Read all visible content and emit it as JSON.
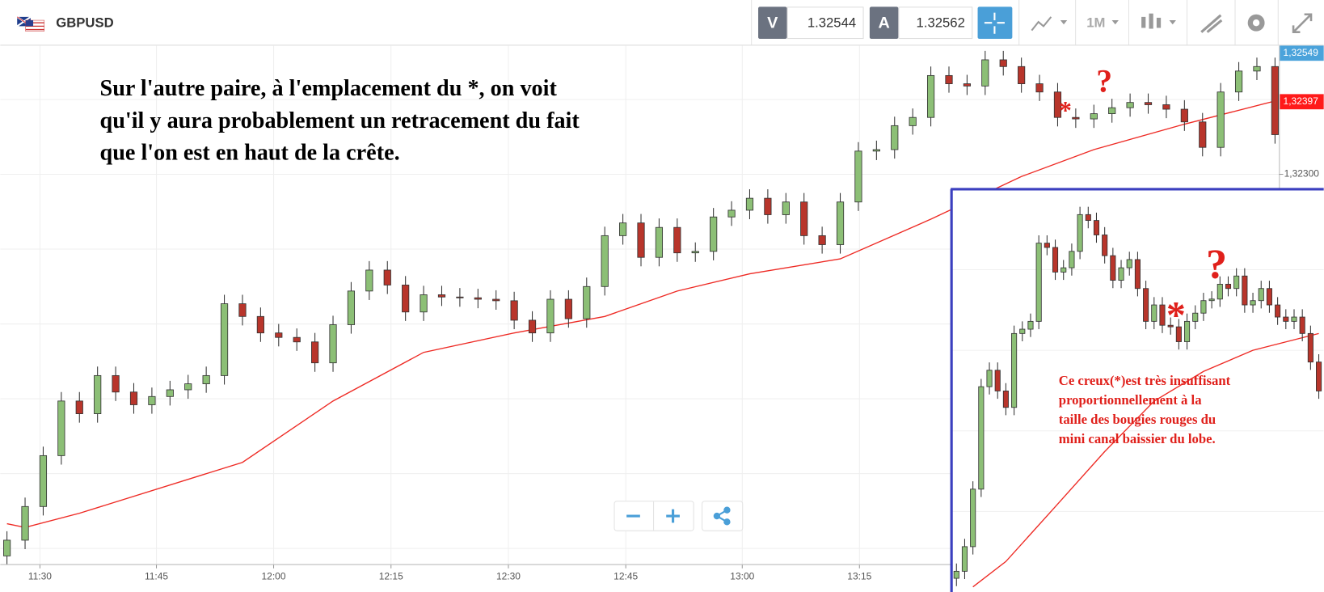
{
  "toolbar": {
    "symbol": "GBPUSD",
    "bid_label": "V",
    "bid": 1.32544,
    "ask_label": "A",
    "ask": 1.32562,
    "timeframe": "1M"
  },
  "annotation": {
    "lines": [
      "Sur l'autre paire, à  l'emplacement  du *, on voit",
      "qu'il y aura probablement un retracement du fait",
      "que l'on est en haut de la crête."
    ],
    "star": "*",
    "question": "?"
  },
  "chart_data": {
    "type": "candlestick",
    "xlim": [
      -0.37,
      70.22
    ],
    "ylim": [
      1.31779,
      1.32472
    ],
    "xticks": [
      {
        "value": 1.82,
        "label": "11:30"
      },
      {
        "value": 8.25,
        "label": "11:45"
      },
      {
        "value": 14.72,
        "label": "12:00"
      },
      {
        "value": 21.2,
        "label": "12:15"
      },
      {
        "value": 27.68,
        "label": "12:30"
      },
      {
        "value": 34.16,
        "label": "12:45"
      },
      {
        "value": 40.59,
        "label": "13:00"
      },
      {
        "value": 47.06,
        "label": "13:15"
      }
    ],
    "yticks": [
      {
        "value": 1.323,
        "label": "1,32300"
      }
    ],
    "ygrid": [
      1.318,
      1.319,
      1.32,
      1.321,
      1.322,
      1.323,
      1.324
    ],
    "grid": true,
    "up_color": "#8cbf76",
    "down_color": "#b8352b",
    "open": [
      1.3179,
      1.31811,
      1.31856,
      1.31924,
      1.31997,
      1.3198,
      1.32031,
      1.32009,
      1.31992,
      1.32003,
      1.32012,
      1.3202,
      1.32031,
      1.32127,
      1.3211,
      1.32088,
      1.32082,
      1.32076,
      1.32048,
      1.32099,
      1.32144,
      1.32172,
      1.32152,
      1.32116,
      1.32139,
      1.32136,
      1.32135,
      1.32133,
      1.32131,
      1.32105,
      1.32088,
      1.32133,
      1.32107,
      1.3215,
      1.32218,
      1.32235,
      1.32189,
      1.32229,
      1.32195,
      1.32197,
      1.32243,
      1.32252,
      1.32268,
      1.32246,
      1.32263,
      1.32218,
      1.32206,
      1.32263,
      1.32331,
      1.32333,
      1.32365,
      1.32376,
      1.32432,
      1.32421,
      1.32418,
      1.32453,
      1.32444,
      1.32421,
      1.3241,
      1.32376,
      1.32374,
      1.32381,
      1.32389,
      1.32396,
      1.32393,
      1.32387,
      1.3237,
      1.32336,
      1.3241,
      1.32438,
      1.32444
    ],
    "high": [
      1.31823,
      1.31868,
      1.31936,
      1.32009,
      1.32009,
      1.32043,
      1.32043,
      1.32021,
      1.32015,
      1.32024,
      1.32032,
      1.32043,
      1.32139,
      1.32139,
      1.32122,
      1.321,
      1.32094,
      1.32088,
      1.32111,
      1.32156,
      1.32184,
      1.32184,
      1.32164,
      1.32151,
      1.32151,
      1.32148,
      1.32147,
      1.32145,
      1.32143,
      1.32117,
      1.32145,
      1.32145,
      1.32162,
      1.3223,
      1.32247,
      1.32247,
      1.32241,
      1.32241,
      1.32209,
      1.32255,
      1.32264,
      1.3228,
      1.3228,
      1.32275,
      1.32275,
      1.3223,
      1.32275,
      1.32343,
      1.32345,
      1.32377,
      1.32388,
      1.32444,
      1.32444,
      1.32433,
      1.32465,
      1.32465,
      1.32456,
      1.32433,
      1.32422,
      1.32388,
      1.32393,
      1.32401,
      1.32408,
      1.32408,
      1.32405,
      1.32399,
      1.32382,
      1.32422,
      1.3245,
      1.32456,
      1.32456
    ],
    "low": [
      1.31778,
      1.31799,
      1.31844,
      1.31912,
      1.31968,
      1.31968,
      1.31997,
      1.3198,
      1.3198,
      1.31991,
      1.32,
      1.32008,
      1.32019,
      1.32098,
      1.32076,
      1.3207,
      1.32064,
      1.32036,
      1.32036,
      1.32087,
      1.32132,
      1.3214,
      1.32104,
      1.32104,
      1.32124,
      1.32123,
      1.32121,
      1.32119,
      1.32093,
      1.32076,
      1.32076,
      1.32095,
      1.32095,
      1.32138,
      1.32206,
      1.32177,
      1.32177,
      1.32183,
      1.32183,
      1.32185,
      1.32231,
      1.3224,
      1.32234,
      1.32234,
      1.32206,
      1.32194,
      1.32194,
      1.32251,
      1.32319,
      1.32321,
      1.32353,
      1.32364,
      1.32409,
      1.32406,
      1.32406,
      1.32432,
      1.32409,
      1.32398,
      1.32364,
      1.32362,
      1.32362,
      1.32369,
      1.32377,
      1.32381,
      1.32375,
      1.32358,
      1.32324,
      1.32324,
      1.32398,
      1.32426,
      1.32341
    ],
    "close": [
      1.31811,
      1.31856,
      1.31924,
      1.31997,
      1.3198,
      1.32031,
      1.32009,
      1.31992,
      1.32003,
      1.32012,
      1.3202,
      1.32031,
      1.32127,
      1.3211,
      1.32088,
      1.32082,
      1.32076,
      1.32048,
      1.32099,
      1.32144,
      1.32172,
      1.32152,
      1.32116,
      1.32139,
      1.32136,
      1.32135,
      1.32133,
      1.32131,
      1.32105,
      1.32088,
      1.32133,
      1.32107,
      1.3215,
      1.32218,
      1.32235,
      1.32189,
      1.32229,
      1.32195,
      1.32197,
      1.32243,
      1.32252,
      1.32268,
      1.32246,
      1.32263,
      1.32218,
      1.32206,
      1.32263,
      1.32331,
      1.32333,
      1.32365,
      1.32376,
      1.32432,
      1.32421,
      1.32418,
      1.32453,
      1.32444,
      1.32421,
      1.3241,
      1.32376,
      1.32374,
      1.32381,
      1.32389,
      1.32396,
      1.32393,
      1.32387,
      1.3237,
      1.32336,
      1.3241,
      1.32438,
      1.32444,
      1.32353
    ],
    "moving_average": {
      "color": "#ee2a24",
      "x": [
        0,
        1,
        4,
        13,
        18,
        23,
        28,
        33,
        37,
        41,
        46,
        51,
        56,
        60,
        65,
        70
      ],
      "values": [
        1.31833,
        1.31828,
        1.31847,
        1.31915,
        1.31997,
        1.32062,
        1.32088,
        1.3211,
        1.32144,
        1.32167,
        1.32187,
        1.3224,
        1.32297,
        1.32333,
        1.32367,
        1.32398
      ]
    },
    "price_tags": [
      {
        "value": 1.32549,
        "label": "1,32549",
        "color": "#4ba3db"
      },
      {
        "value": 1.32397,
        "label": "1,32397",
        "color": "#ff1a1a"
      }
    ]
  },
  "inset": {
    "border_color": "#3b3fbf",
    "xlim": [
      -0.6,
      44.6
    ],
    "ylim": [
      -3,
      100
    ],
    "open": [
      0.5,
      2.3,
      8.6,
      23.3,
      49.5,
      53.7,
      48.4,
      44.2,
      63.1,
      64.2,
      66.2,
      86.2,
      85.1,
      78.8,
      79.9,
      84.1,
      93.5,
      92.0,
      88.3,
      83.0,
      76.7,
      79.9,
      82.0,
      74.6,
      66.2,
      70.4,
      65.2,
      64.8,
      61.0,
      66.2,
      68.3,
      71.5,
      71.9,
      75.7,
      74.6,
      77.8,
      70.4,
      71.5,
      74.6,
      70.4,
      67.3,
      66.2,
      67.3,
      63.1,
      55.8
    ],
    "high": [
      4.3,
      10.6,
      25.3,
      51.5,
      55.7,
      55.7,
      50.4,
      65.1,
      66.2,
      68.2,
      88.2,
      88.2,
      87.1,
      81.9,
      86.1,
      95.5,
      95.5,
      94.0,
      90.3,
      85.0,
      81.9,
      84.0,
      84.0,
      76.6,
      72.4,
      72.4,
      67.2,
      66.8,
      68.2,
      70.3,
      73.5,
      73.9,
      77.7,
      77.7,
      79.8,
      79.8,
      73.5,
      76.6,
      76.6,
      72.4,
      69.3,
      69.3,
      69.3,
      65.1,
      57.8
    ],
    "low": [
      -1.5,
      0.3,
      6.6,
      21.3,
      47.5,
      46.4,
      42.2,
      42.2,
      61.1,
      62.2,
      64.2,
      83.1,
      76.8,
      76.8,
      77.9,
      82.1,
      90.0,
      86.3,
      81.0,
      74.7,
      74.7,
      77.9,
      72.6,
      64.2,
      64.2,
      63.2,
      62.8,
      59.0,
      59.0,
      64.2,
      66.3,
      69.5,
      69.9,
      72.6,
      72.6,
      68.4,
      68.4,
      69.5,
      68.4,
      65.3,
      64.2,
      64.2,
      61.1,
      53.8,
      46.4
    ],
    "close": [
      2.3,
      8.6,
      23.3,
      49.5,
      53.7,
      48.4,
      44.2,
      63.1,
      64.2,
      66.2,
      86.2,
      85.1,
      78.8,
      79.9,
      84.1,
      93.5,
      92.0,
      88.3,
      83.0,
      76.7,
      79.9,
      82.0,
      74.6,
      66.2,
      70.4,
      65.2,
      64.8,
      61.0,
      66.2,
      68.3,
      71.5,
      71.9,
      75.7,
      74.6,
      77.8,
      70.4,
      71.5,
      74.6,
      70.4,
      67.3,
      66.2,
      67.3,
      63.1,
      55.8,
      48.4
    ],
    "moving_average": {
      "x": [
        2,
        6,
        12,
        18,
        24,
        30,
        36,
        44
      ],
      "values": [
        -1.7,
        4.8,
        18.8,
        32.9,
        45.8,
        53.4,
        58.8,
        63.1
      ]
    },
    "note": [
      "Ce creux(*)est très insuffisant",
      "proportionnellement à la",
      "taille des bougies rouges du",
      "mini canal baissier du lobe."
    ],
    "star": "*",
    "question": "?"
  }
}
